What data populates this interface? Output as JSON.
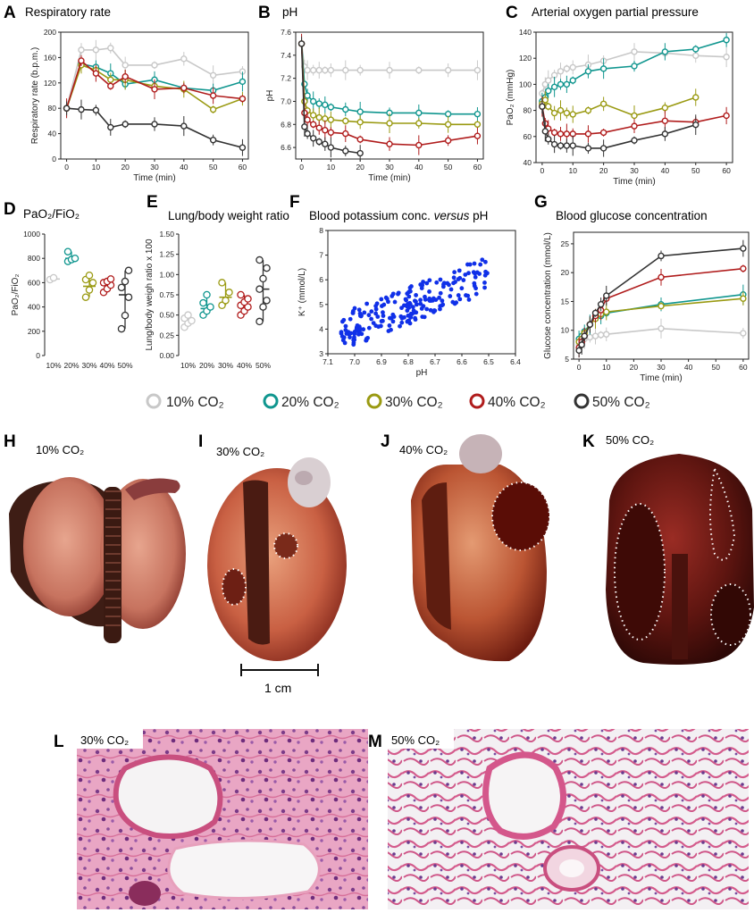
{
  "colors": {
    "c10": "#c8c8c8",
    "c20": "#10968f",
    "c30": "#9a9a12",
    "c40": "#b01c1c",
    "c50": "#333333",
    "scatter": "#1030e8"
  },
  "legend": {
    "items": [
      "10% CO₂",
      "20% CO₂",
      "30% CO₂",
      "40% CO₂",
      "50% CO₂"
    ]
  },
  "chart_data": [
    {
      "id": "A",
      "type": "line",
      "panel_label": "A",
      "title": "Respiratory rate",
      "xlabel": "Time (min)",
      "ylabel": "Respiratory rate (b.p.m.)",
      "xlim": [
        -2,
        62
      ],
      "ylim": [
        0,
        200
      ],
      "xticks": [
        0,
        10,
        20,
        30,
        40,
        50,
        60
      ],
      "yticks": [
        0,
        40,
        80,
        120,
        160,
        200
      ],
      "series": [
        {
          "name": "10% CO2",
          "x": [
            0,
            5,
            10,
            15,
            20,
            30,
            40,
            50,
            60
          ],
          "values": [
            80,
            172,
            172,
            175,
            148,
            148,
            158,
            132,
            138
          ]
        },
        {
          "name": "20% CO2",
          "x": [
            0,
            5,
            10,
            15,
            20,
            30,
            40,
            50,
            60
          ],
          "values": [
            80,
            150,
            145,
            135,
            118,
            125,
            112,
            108,
            122
          ]
        },
        {
          "name": "30% CO2",
          "x": [
            0,
            5,
            10,
            15,
            20,
            30,
            40,
            50,
            60
          ],
          "values": [
            80,
            148,
            140,
            125,
            125,
            115,
            110,
            78,
            95
          ]
        },
        {
          "name": "40% CO2",
          "x": [
            0,
            5,
            10,
            15,
            20,
            30,
            40,
            50,
            60
          ],
          "values": [
            80,
            155,
            135,
            115,
            130,
            110,
            112,
            100,
            95
          ]
        },
        {
          "name": "50% CO2",
          "x": [
            0,
            5,
            10,
            15,
            20,
            30,
            40,
            50,
            60
          ],
          "values": [
            80,
            78,
            77,
            50,
            55,
            55,
            52,
            30,
            18
          ]
        }
      ]
    },
    {
      "id": "B",
      "type": "line",
      "panel_label": "B",
      "title": "pH",
      "xlabel": "Time (min)",
      "ylabel": "pH",
      "xlim": [
        -2,
        62
      ],
      "ylim": [
        6.5,
        7.6
      ],
      "xticks": [
        0,
        10,
        20,
        30,
        40,
        50,
        60
      ],
      "yticks": [
        6.6,
        6.8,
        7.0,
        7.2,
        7.4,
        7.6
      ],
      "series": [
        {
          "name": "10% CO2",
          "x": [
            0,
            1,
            2,
            4,
            6,
            8,
            10,
            15,
            20,
            30,
            40,
            50,
            60
          ],
          "values": [
            7.5,
            7.3,
            7.27,
            7.27,
            7.27,
            7.27,
            7.27,
            7.27,
            7.27,
            7.27,
            7.27,
            7.27,
            7.27
          ]
        },
        {
          "name": "20% CO2",
          "x": [
            0,
            1,
            2,
            4,
            6,
            8,
            10,
            15,
            20,
            30,
            40,
            50,
            60
          ],
          "values": [
            7.5,
            7.15,
            7.05,
            7.0,
            6.98,
            6.97,
            6.95,
            6.93,
            6.91,
            6.9,
            6.9,
            6.89,
            6.89
          ]
        },
        {
          "name": "30% CO2",
          "x": [
            0,
            1,
            2,
            4,
            6,
            8,
            10,
            15,
            20,
            30,
            40,
            50,
            60
          ],
          "values": [
            7.5,
            7.0,
            6.92,
            6.88,
            6.86,
            6.85,
            6.84,
            6.83,
            6.82,
            6.81,
            6.81,
            6.8,
            6.8
          ]
        },
        {
          "name": "40% CO2",
          "x": [
            0,
            1,
            2,
            4,
            6,
            8,
            10,
            15,
            20,
            30,
            40,
            50,
            60
          ],
          "values": [
            7.5,
            6.9,
            6.84,
            6.8,
            6.77,
            6.75,
            6.73,
            6.72,
            6.67,
            6.63,
            6.62,
            6.66,
            6.7
          ]
        },
        {
          "name": "50% CO2",
          "x": [
            0,
            1,
            2,
            4,
            6,
            8,
            10,
            15,
            20
          ],
          "values": [
            7.5,
            6.78,
            6.72,
            6.68,
            6.65,
            6.63,
            6.6,
            6.57,
            6.55
          ]
        }
      ]
    },
    {
      "id": "C",
      "type": "line",
      "panel_label": "C",
      "title": "Arterial oxygen partial pressure",
      "xlabel": "Time (min)",
      "ylabel": "PaO₂ (mmHg)",
      "xlim": [
        -2,
        62
      ],
      "ylim": [
        40,
        140
      ],
      "xticks": [
        0,
        10,
        20,
        30,
        40,
        50,
        60
      ],
      "yticks": [
        40,
        60,
        80,
        100,
        120,
        140
      ],
      "series": [
        {
          "name": "10% CO2",
          "x": [
            0,
            1,
            2,
            4,
            6,
            8,
            10,
            15,
            20,
            30,
            40,
            50,
            60
          ],
          "values": [
            93,
            100,
            103,
            107,
            110,
            112,
            113,
            115,
            118,
            125,
            124,
            122,
            121
          ]
        },
        {
          "name": "20% CO2",
          "x": [
            0,
            1,
            2,
            4,
            6,
            8,
            10,
            15,
            20,
            30,
            40,
            50,
            60
          ],
          "values": [
            87,
            90,
            95,
            98,
            100,
            100,
            103,
            110,
            112,
            114,
            125,
            127,
            134
          ]
        },
        {
          "name": "30% CO2",
          "x": [
            0,
            1,
            2,
            4,
            6,
            8,
            10,
            15,
            20,
            30,
            40,
            50
          ],
          "values": [
            85,
            88,
            83,
            78,
            80,
            78,
            77,
            80,
            85,
            76,
            82,
            90
          ]
        },
        {
          "name": "40% CO2",
          "x": [
            0,
            1,
            2,
            4,
            6,
            8,
            10,
            15,
            20,
            30,
            40,
            50,
            60
          ],
          "values": [
            83,
            70,
            66,
            63,
            62,
            62,
            62,
            62,
            63,
            68,
            72,
            71,
            76
          ]
        },
        {
          "name": "50% CO2",
          "x": [
            0,
            1,
            2,
            4,
            6,
            8,
            10,
            15,
            20,
            30,
            40,
            50
          ],
          "values": [
            83,
            64,
            58,
            54,
            53,
            53,
            53,
            51,
            51,
            57,
            62,
            69
          ]
        }
      ]
    },
    {
      "id": "D",
      "type": "scatter",
      "panel_label": "D",
      "title": "PaO₂/FiO₂",
      "ylabel": "PaO₂/FiO₂",
      "categories": [
        "10%",
        "20%",
        "30%",
        "40%",
        "50%"
      ],
      "ylim": [
        0,
        1000
      ],
      "yticks": [
        0,
        200,
        400,
        600,
        800,
        1000
      ],
      "groups": [
        [
          625,
          640
        ],
        [
          775,
          790,
          800,
          855
        ],
        [
          480,
          540,
          600,
          625,
          660
        ],
        [
          520,
          550,
          580,
          600,
          610,
          630
        ],
        [
          220,
          330,
          480,
          560,
          610,
          700
        ]
      ],
      "mean": [
        630,
        800,
        570,
        580,
        500
      ]
    },
    {
      "id": "E",
      "type": "scatter",
      "panel_label": "E",
      "title": "Lung/body weight ratio",
      "ylabel": "Lung/body weigh ratio x 100",
      "categories": [
        "10%",
        "20%",
        "30%",
        "40%",
        "50%"
      ],
      "ylim": [
        0,
        1.5
      ],
      "yticks": [
        0,
        0.25,
        0.5,
        0.75,
        1.0,
        1.25,
        1.5
      ],
      "groups": [
        [
          0.35,
          0.4,
          0.43,
          0.46,
          0.5
        ],
        [
          0.5,
          0.55,
          0.6,
          0.65,
          0.75
        ],
        [
          0.62,
          0.68,
          0.78,
          0.9
        ],
        [
          0.5,
          0.55,
          0.6,
          0.62,
          0.66,
          0.7,
          0.75
        ],
        [
          0.42,
          0.6,
          0.68,
          0.82,
          0.95,
          1.08,
          1.18
        ]
      ],
      "mean": [
        0.43,
        0.58,
        0.72,
        0.63,
        0.82
      ]
    },
    {
      "id": "F",
      "type": "scatter",
      "panel_label": "F",
      "title_pre": "Blood potassium conc. ",
      "title_em": "versus",
      "title_post": " pH",
      "xlabel": "pH",
      "ylabel": "K⁺ (mmol/L)",
      "xlim": [
        7.1,
        6.4
      ],
      "ylim": [
        3,
        8
      ],
      "xticks": [
        7.1,
        7.0,
        6.9,
        6.8,
        6.7,
        6.6,
        6.5,
        6.4
      ],
      "yticks": [
        3,
        4,
        5,
        6,
        7,
        8
      ]
    },
    {
      "id": "G",
      "type": "line",
      "panel_label": "G",
      "title": "Blood glucose concentration",
      "xlabel": "Time (min)",
      "ylabel": "Glucose concentration (mmol/L)",
      "xlim": [
        -2,
        62
      ],
      "ylim": [
        5,
        27
      ],
      "xticks": [
        0,
        10,
        20,
        30,
        40,
        50,
        60
      ],
      "yticks": [
        5,
        10,
        15,
        20,
        25
      ],
      "series": [
        {
          "name": "10% CO2",
          "x": [
            0,
            1,
            2,
            4,
            6,
            8,
            10,
            30,
            60
          ],
          "values": [
            7.5,
            8.0,
            8.5,
            8.8,
            9.0,
            9.2,
            9.3,
            10.3,
            9.5
          ]
        },
        {
          "name": "20% CO2",
          "x": [
            0,
            1,
            2,
            4,
            6,
            8,
            10,
            30,
            60
          ],
          "values": [
            8.5,
            9,
            9.8,
            11,
            12,
            12.5,
            13,
            14.5,
            16.2
          ]
        },
        {
          "name": "30% CO2",
          "x": [
            0,
            1,
            2,
            4,
            6,
            8,
            10,
            30,
            60
          ],
          "values": [
            8,
            8.5,
            9.5,
            11,
            12,
            12.8,
            13.2,
            14.2,
            15.5
          ]
        },
        {
          "name": "40% CO2",
          "x": [
            0,
            1,
            2,
            4,
            6,
            8,
            10,
            30,
            60
          ],
          "values": [
            7,
            8,
            9,
            11,
            12.5,
            13.5,
            15.5,
            19.2,
            20.7
          ]
        },
        {
          "name": "50% CO2",
          "x": [
            0,
            1,
            2,
            4,
            6,
            8,
            10,
            30,
            60
          ],
          "values": [
            6.5,
            7.5,
            9,
            11,
            13,
            14.5,
            16,
            22.9,
            24.2
          ]
        }
      ]
    }
  ],
  "photos": {
    "H": {
      "label": "H",
      "caption": "10% CO₂"
    },
    "I": {
      "label": "I",
      "caption": "30% CO₂"
    },
    "J": {
      "label": "J",
      "caption": "40% CO₂"
    },
    "K": {
      "label": "K",
      "caption": "50% CO₂"
    },
    "scale_bar": "1 cm"
  },
  "histology": {
    "L": {
      "label": "L",
      "caption": "30% CO₂"
    },
    "M": {
      "label": "M",
      "caption": "50% CO₂"
    }
  }
}
